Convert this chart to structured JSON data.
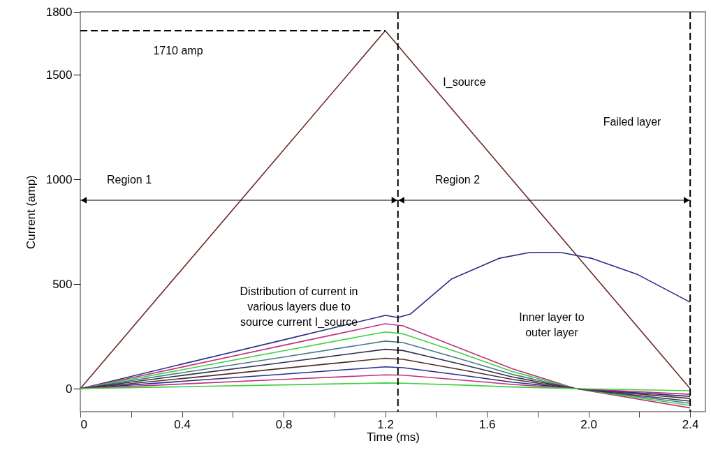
{
  "chart_data": {
    "type": "line",
    "xlabel": "Time (ms)",
    "ylabel": "Current (amp)",
    "xlim": [
      0,
      2.46
    ],
    "ylim": [
      -110,
      1800
    ],
    "xticks": [
      0,
      {
        "value": 0.2,
        "label": null
      },
      0.4,
      {
        "value": 0.6,
        "label": null
      },
      0.8,
      {
        "value": 1.0,
        "label": null
      },
      1.2,
      {
        "value": 1.4,
        "label": null
      },
      1.6,
      {
        "value": 1.8,
        "label": null
      },
      {
        "value": 2,
        "label": "2.0"
      },
      {
        "value": 2.2,
        "label": null
      },
      2.4
    ],
    "yticks": [
      0,
      500,
      1000,
      1500,
      1800
    ],
    "grid": false,
    "marker": "none",
    "series": [
      {
        "color": "#6b2a2a",
        "x": [
          0,
          1.2,
          2.4
        ],
        "values": [
          0,
          1710,
          0
        ]
      },
      {
        "color": "#000000",
        "line_style": "dashed",
        "x": [
          0,
          1.2
        ],
        "values": [
          1710,
          1710
        ]
      },
      {
        "color": "#2b2b8c",
        "x": [
          0,
          0.4,
          0.8,
          1.2,
          1.25,
          1.3,
          1.46,
          1.65,
          1.77,
          1.89,
          2.01,
          2.19,
          2.4
        ],
        "values": [
          0,
          117,
          233,
          350,
          340,
          357,
          523,
          623,
          651,
          651,
          623,
          547,
          413
        ]
      },
      {
        "color": "#c0307f",
        "x": [
          0,
          0.4,
          0.8,
          1.2,
          1.27,
          1.5,
          1.7,
          1.95,
          2.4
        ],
        "values": [
          0,
          103,
          207,
          310,
          300,
          190,
          95,
          0,
          -92
        ]
      },
      {
        "color": "#40d040",
        "x": [
          0,
          0.4,
          0.8,
          1.2,
          1.27,
          1.5,
          1.7,
          1.95,
          2.4
        ],
        "values": [
          0,
          90,
          181,
          271,
          262,
          168,
          82,
          0,
          -80
        ]
      },
      {
        "color": "#4a7a8a",
        "x": [
          0,
          0.4,
          0.8,
          1.2,
          1.27,
          1.5,
          1.7,
          1.95,
          2.4
        ],
        "values": [
          0,
          76,
          151,
          227,
          220,
          140,
          68,
          0,
          -70
        ]
      },
      {
        "color": "#303050",
        "x": [
          0,
          0.4,
          0.8,
          1.2,
          1.27,
          1.5,
          1.7,
          1.95,
          2.4
        ],
        "values": [
          0,
          63,
          125,
          188,
          182,
          116,
          56,
          0,
          -60
        ]
      },
      {
        "color": "#503020",
        "x": [
          0,
          0.4,
          0.8,
          1.2,
          1.27,
          1.5,
          1.7,
          1.95,
          2.4
        ],
        "values": [
          0,
          48,
          97,
          145,
          140,
          90,
          44,
          0,
          -47
        ]
      },
      {
        "color": "#2a2a90",
        "x": [
          0,
          0.4,
          0.8,
          1.2,
          1.27,
          1.5,
          1.7,
          1.95,
          2.4
        ],
        "values": [
          0,
          35,
          69,
          104,
          100,
          64,
          31,
          0,
          -37
        ]
      },
      {
        "color": "#c0307f",
        "x": [
          0,
          0.4,
          0.8,
          1.2,
          1.27,
          1.5,
          1.7,
          1.95,
          2.4
        ],
        "values": [
          0,
          22,
          44,
          66,
          64,
          41,
          20,
          0,
          -27
        ]
      },
      {
        "color": "#40d040",
        "x": [
          0,
          0.4,
          0.8,
          1.2,
          1.27,
          1.5,
          1.7,
          1.95,
          2.4
        ],
        "values": [
          0,
          9,
          18,
          27,
          26,
          17,
          8,
          0,
          -10
        ]
      }
    ],
    "ref_lines": [
      {
        "axis": "x",
        "value": 1.25,
        "color": "#000000",
        "line_style": "dashed"
      },
      {
        "axis": "x",
        "value": 2.4,
        "color": "#000000",
        "line_style": "dashed"
      }
    ],
    "annotations": [
      "Region 1",
      "Region 2",
      "1710 amp",
      "I_source",
      "Failed layer",
      "Distribution of current in\nvarious layers due to\nsource current I_source",
      "Inner layer to\nouter layer"
    ]
  }
}
